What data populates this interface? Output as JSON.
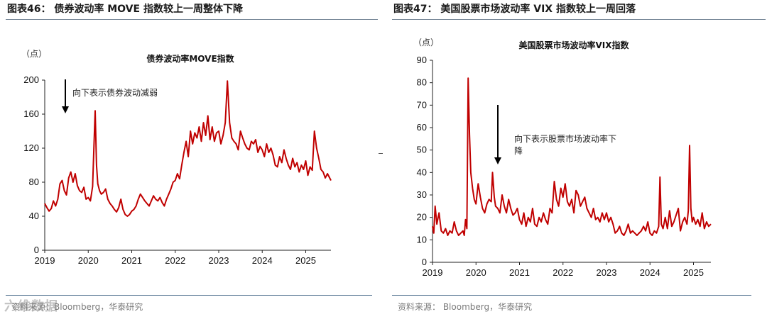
{
  "left": {
    "header": "图表46： 债券波动率 MOVE 指数较上一周整体下降",
    "source": "资料来源：Bloomberg，华泰研究",
    "watermark": "六维数据",
    "chart_data": {
      "type": "line",
      "title": "债券波动率MOVE指数",
      "ylabel": "（点）",
      "annotation": "向下表示债券波动减弱",
      "ylim": [
        0,
        200
      ],
      "yticks": [
        0,
        40,
        80,
        120,
        160,
        200
      ],
      "xticks": [
        "2019",
        "2020",
        "2021",
        "2022",
        "2023",
        "2024",
        "2025"
      ],
      "xlim": [
        2019.0,
        2025.58
      ],
      "color": "#c00000",
      "series": [
        {
          "x": [
            2019.0,
            2019.05,
            2019.1,
            2019.15,
            2019.2,
            2019.25,
            2019.3,
            2019.35,
            2019.4,
            2019.45,
            2019.5,
            2019.55,
            2019.6,
            2019.65,
            2019.7,
            2019.75,
            2019.8,
            2019.85,
            2019.9,
            2019.95,
            2020.0,
            2020.05,
            2020.1,
            2020.13,
            2020.16,
            2020.19,
            2020.22,
            2020.26,
            2020.3,
            2020.35,
            2020.4,
            2020.45,
            2020.5,
            2020.55,
            2020.6,
            2020.65,
            2020.7,
            2020.75,
            2020.8,
            2020.85,
            2020.9,
            2020.95,
            2021.0,
            2021.05,
            2021.1,
            2021.15,
            2021.2,
            2021.25,
            2021.3,
            2021.35,
            2021.4,
            2021.45,
            2021.5,
            2021.55,
            2021.6,
            2021.65,
            2021.7,
            2021.75,
            2021.8,
            2021.85,
            2021.9,
            2021.95,
            2022.0,
            2022.05,
            2022.1,
            2022.15,
            2022.2,
            2022.25,
            2022.3,
            2022.35,
            2022.4,
            2022.45,
            2022.5,
            2022.55,
            2022.6,
            2022.65,
            2022.7,
            2022.75,
            2022.8,
            2022.85,
            2022.9,
            2022.95,
            2023.0,
            2023.05,
            2023.1,
            2023.15,
            2023.2,
            2023.25,
            2023.3,
            2023.35,
            2023.4,
            2023.45,
            2023.5,
            2023.55,
            2023.6,
            2023.65,
            2023.7,
            2023.75,
            2023.8,
            2023.85,
            2023.9,
            2023.95,
            2024.0,
            2024.05,
            2024.1,
            2024.15,
            2024.2,
            2024.25,
            2024.3,
            2024.35,
            2024.4,
            2024.45,
            2024.5,
            2024.55,
            2024.6,
            2024.65,
            2024.7,
            2024.75,
            2024.8,
            2024.85,
            2024.9,
            2024.95,
            2025.0,
            2025.05,
            2025.1,
            2025.15,
            2025.2,
            2025.25,
            2025.3,
            2025.35,
            2025.4,
            2025.45,
            2025.5,
            2025.55,
            2025.58
          ],
          "y": [
            55,
            50,
            46,
            49,
            58,
            52,
            60,
            78,
            82,
            70,
            65,
            85,
            92,
            80,
            90,
            76,
            70,
            68,
            74,
            60,
            62,
            58,
            75,
            120,
            164,
            100,
            78,
            70,
            66,
            68,
            72,
            60,
            55,
            52,
            48,
            45,
            50,
            60,
            48,
            42,
            40,
            42,
            46,
            48,
            52,
            60,
            66,
            62,
            58,
            55,
            52,
            58,
            64,
            60,
            58,
            62,
            56,
            52,
            60,
            66,
            72,
            80,
            82,
            90,
            84,
            100,
            115,
            128,
            110,
            140,
            125,
            138,
            132,
            145,
            128,
            150,
            135,
            158,
            130,
            145,
            128,
            138,
            140,
            125,
            135,
            150,
            199,
            150,
            132,
            128,
            125,
            118,
            140,
            132,
            125,
            120,
            118,
            128,
            125,
            130,
            115,
            122,
            118,
            110,
            125,
            115,
            120,
            112,
            100,
            98,
            110,
            103,
            118,
            108,
            100,
            95,
            108,
            98,
            103,
            92,
            100,
            95,
            105,
            88,
            98,
            94,
            140,
            120,
            108,
            95,
            92,
            85,
            90,
            85,
            82
          ]
        }
      ]
    }
  },
  "right": {
    "header": "图表47： 美国股票市场波动率 VIX 指数较上一周回落",
    "source": "资料来源： Bloomberg，华泰研究",
    "chart_data": {
      "type": "line",
      "title": "美国股票市场波动率VIX指数",
      "ylabel": "（点）",
      "annotation": "向下表示股票市场波动率下降",
      "ylim": [
        0,
        90
      ],
      "yticks": [
        0,
        10,
        20,
        30,
        40,
        50,
        60,
        70,
        80,
        90
      ],
      "xticks": [
        "2019",
        "2020",
        "2021",
        "2022",
        "2023",
        "2024",
        "2025"
      ],
      "xlim": [
        2019.0,
        2025.4
      ],
      "color": "#c00000",
      "series": [
        {
          "x": [
            2019.0,
            2019.03,
            2019.06,
            2019.1,
            2019.15,
            2019.2,
            2019.25,
            2019.3,
            2019.35,
            2019.4,
            2019.45,
            2019.5,
            2019.55,
            2019.6,
            2019.65,
            2019.7,
            2019.73,
            2019.76,
            2019.79,
            2019.82,
            2019.85,
            2019.88,
            2019.92,
            2019.96,
            2020.0,
            2020.05,
            2020.1,
            2020.15,
            2020.2,
            2020.25,
            2020.3,
            2020.35,
            2020.38,
            2020.42,
            2020.45,
            2020.5,
            2020.55,
            2020.6,
            2020.65,
            2020.7,
            2020.75,
            2020.8,
            2020.85,
            2020.9,
            2020.95,
            2021.0,
            2021.05,
            2021.1,
            2021.15,
            2021.2,
            2021.25,
            2021.3,
            2021.35,
            2021.4,
            2021.45,
            2021.5,
            2021.55,
            2021.6,
            2021.65,
            2021.7,
            2021.75,
            2021.8,
            2021.85,
            2021.9,
            2021.95,
            2022.0,
            2022.05,
            2022.1,
            2022.15,
            2022.2,
            2022.25,
            2022.3,
            2022.35,
            2022.4,
            2022.45,
            2022.5,
            2022.55,
            2022.6,
            2022.65,
            2022.7,
            2022.75,
            2022.8,
            2022.85,
            2022.9,
            2022.95,
            2023.0,
            2023.05,
            2023.1,
            2023.15,
            2023.2,
            2023.25,
            2023.3,
            2023.35,
            2023.4,
            2023.45,
            2023.5,
            2023.55,
            2023.6,
            2023.65,
            2023.7,
            2023.75,
            2023.8,
            2023.85,
            2023.9,
            2023.95,
            2024.0,
            2024.05,
            2024.1,
            2024.15,
            2024.2,
            2024.23,
            2024.26,
            2024.3,
            2024.35,
            2024.4,
            2024.45,
            2024.5,
            2024.55,
            2024.6,
            2024.65,
            2024.7,
            2024.75,
            2024.8,
            2024.85,
            2024.88,
            2024.91,
            2024.94,
            2024.97,
            2025.0,
            2025.05,
            2025.1,
            2025.15,
            2025.2,
            2025.25,
            2025.3,
            2025.35,
            2025.4
          ],
          "y": [
            16,
            13,
            25,
            17,
            22,
            14,
            13,
            15,
            12,
            14,
            13,
            18,
            14,
            12,
            13,
            14,
            12,
            19,
            15,
            82,
            57,
            40,
            33,
            28,
            26,
            35,
            29,
            24,
            22,
            26,
            28,
            27,
            40,
            29,
            25,
            24,
            22,
            30,
            25,
            22,
            28,
            24,
            21,
            22,
            24,
            19,
            17,
            22,
            16,
            20,
            18,
            24,
            17,
            16,
            20,
            18,
            22,
            19,
            17,
            24,
            22,
            36,
            28,
            25,
            33,
            29,
            35,
            27,
            25,
            28,
            22,
            32,
            30,
            25,
            27,
            29,
            24,
            22,
            20,
            24,
            19,
            20,
            18,
            22,
            19,
            22,
            18,
            20,
            17,
            13,
            14,
            16,
            13,
            12,
            14,
            17,
            13,
            14,
            13,
            12,
            13,
            14,
            16,
            14,
            18,
            13,
            12,
            14,
            13,
            16,
            38,
            17,
            15,
            20,
            15,
            23,
            16,
            18,
            21,
            24,
            14,
            18,
            20,
            17,
            23,
            52,
            24,
            18,
            20,
            17,
            19,
            16,
            22,
            15,
            18,
            16,
            17
          ]
        }
      ]
    }
  }
}
